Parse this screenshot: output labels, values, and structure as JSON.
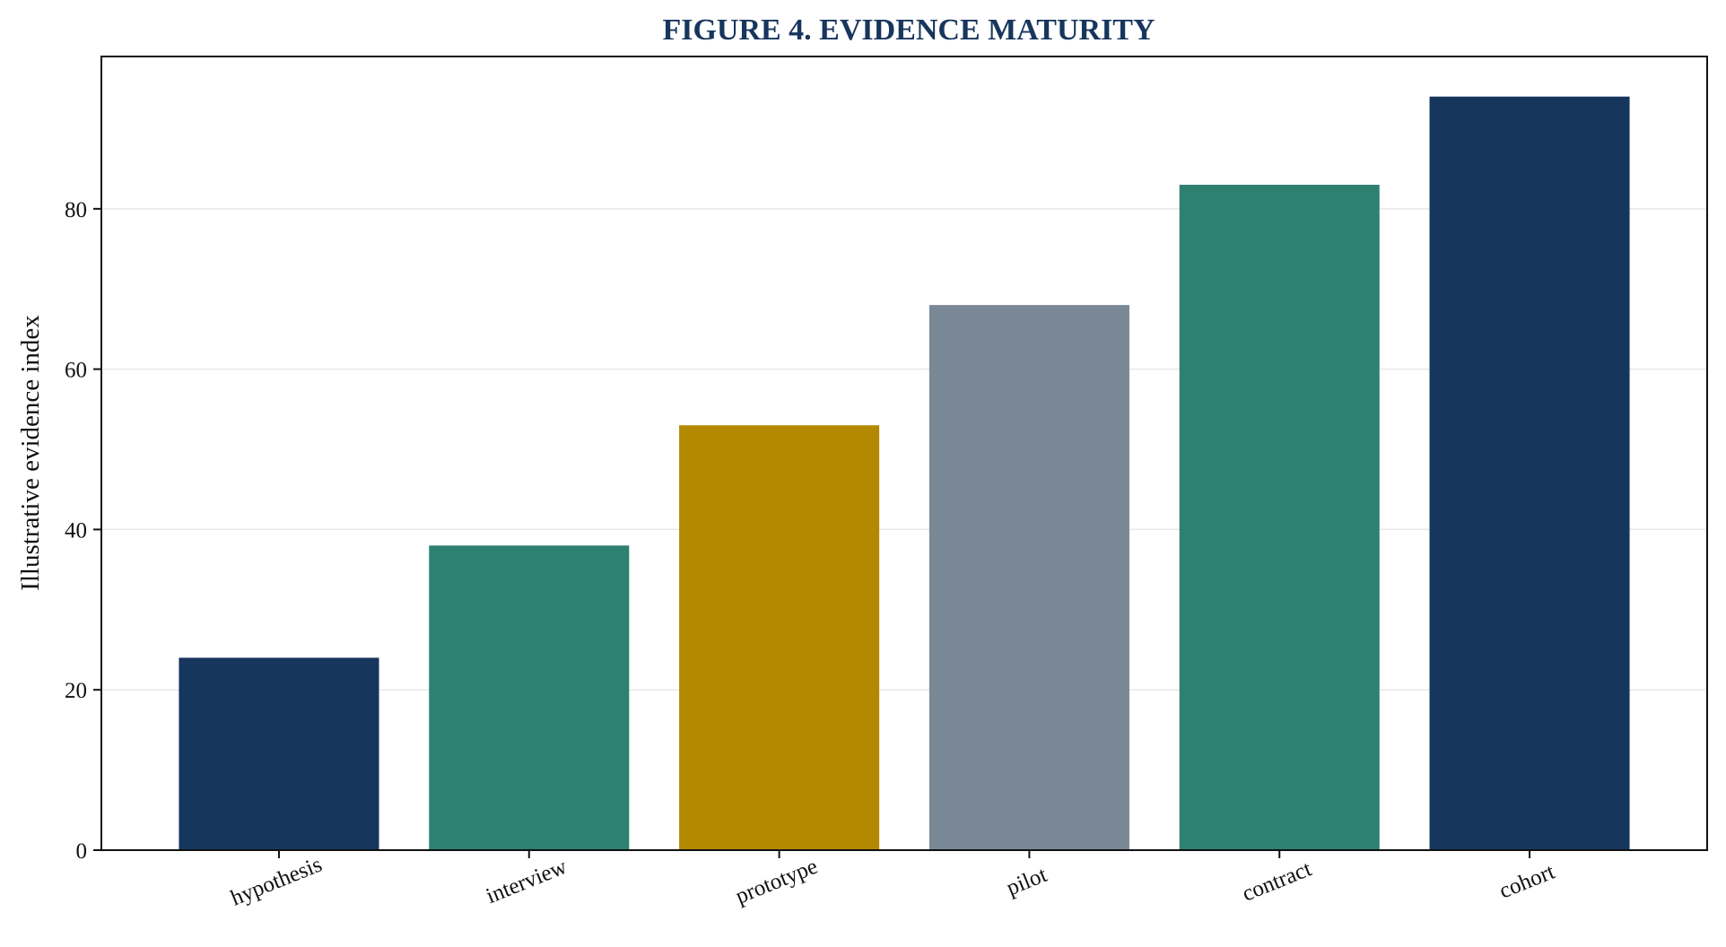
{
  "chart_data": {
    "type": "bar",
    "title": "FIGURE 4. EVIDENCE MATURITY",
    "xlabel": "",
    "ylabel": "Illustrative evidence index",
    "categories": [
      "hypothesis",
      "interview",
      "prototype",
      "pilot",
      "contract",
      "cohort"
    ],
    "values": [
      24,
      38,
      53,
      68,
      83,
      94
    ],
    "bar_colors": [
      "#17365d",
      "#2e8070",
      "#b38900",
      "#7a8795",
      "#2e8070",
      "#17365d"
    ],
    "ylim": [
      0,
      99
    ],
    "yticks": [
      0,
      20,
      40,
      60,
      80
    ],
    "grid": "y",
    "legend": "none",
    "x_tick_rotation_deg": -22,
    "colors": {
      "title": "#17365d",
      "grid": "#e8e8e8",
      "axis": "#111111"
    }
  }
}
